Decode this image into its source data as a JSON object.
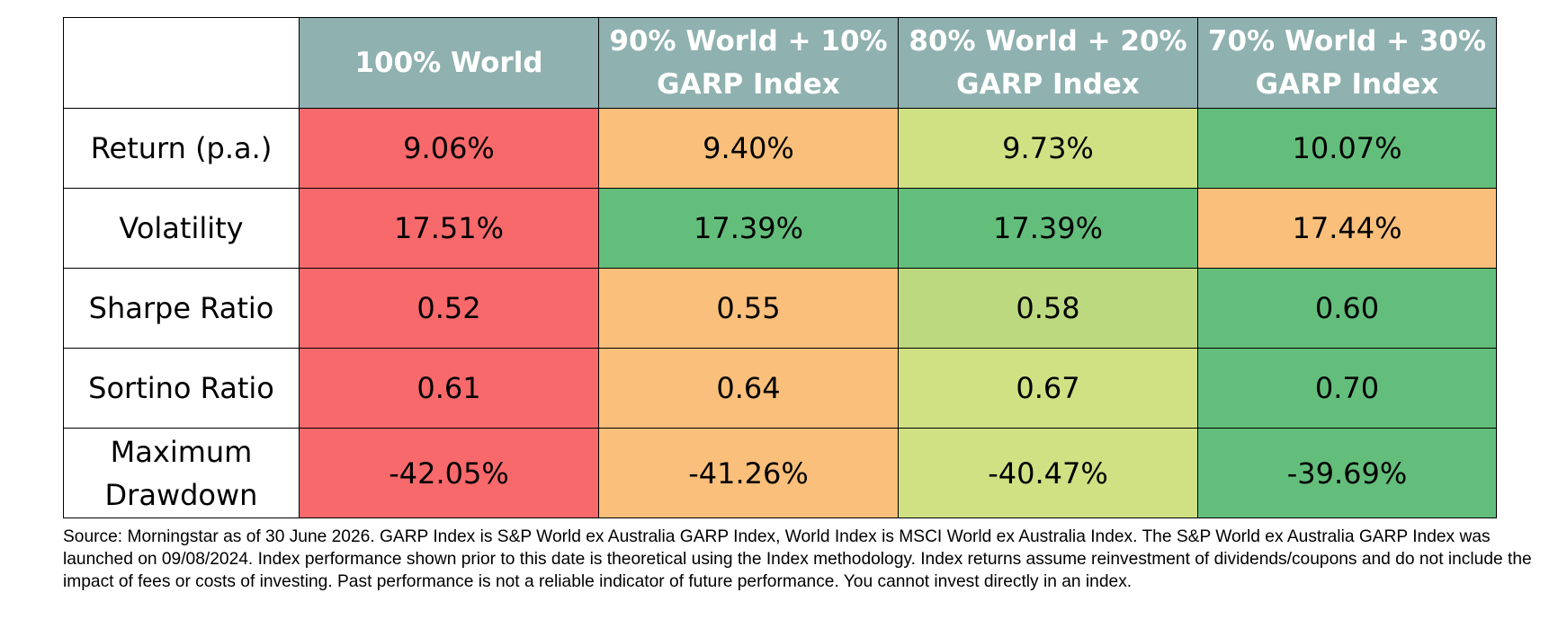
{
  "colors": {
    "header_bg": "#8fb1af",
    "red": "#f8696b",
    "orange": "#fabf7a",
    "light_yellow_green": "#cfe183",
    "light_green": "#bcd97f",
    "green": "#63be7b"
  },
  "table": {
    "columns": [
      "100% World",
      "90% World + 10% GARP Index",
      "80% World + 20% GARP Index",
      "70% World + 30% GARP Index"
    ],
    "rows": [
      {
        "label": "Return (p.a.)",
        "values": [
          "9.06%",
          "9.40%",
          "9.73%",
          "10.07%"
        ],
        "colors": [
          "#f8696b",
          "#fabf7a",
          "#cfe183",
          "#63be7b"
        ]
      },
      {
        "label": "Volatility",
        "values": [
          "17.51%",
          "17.39%",
          "17.39%",
          "17.44%"
        ],
        "colors": [
          "#f8696b",
          "#63be7b",
          "#63be7b",
          "#fabf7a"
        ]
      },
      {
        "label": "Sharpe Ratio",
        "values": [
          "0.52",
          "0.55",
          "0.58",
          "0.60"
        ],
        "colors": [
          "#f8696b",
          "#fabf7a",
          "#bcd97f",
          "#63be7b"
        ]
      },
      {
        "label": "Sortino Ratio",
        "values": [
          "0.61",
          "0.64",
          "0.67",
          "0.70"
        ],
        "colors": [
          "#f8696b",
          "#fabf7a",
          "#cfe183",
          "#63be7b"
        ]
      },
      {
        "label": "Maximum Drawdown",
        "values": [
          "-42.05%",
          "-41.26%",
          "-40.47%",
          "-39.69%"
        ],
        "colors": [
          "#f8696b",
          "#fabf7a",
          "#cfe183",
          "#63be7b"
        ]
      }
    ]
  },
  "source_note": "Source: Morningstar as of 30 June 2026. GARP Index is S&P World ex Australia GARP Index, World Index is MSCI World ex Australia Index. The S&P World ex Australia GARP Index was launched on 09/08/2024. Index performance shown prior to this date is theoretical using the Index methodology. Index returns assume reinvestment of dividends/coupons and do not include the impact of fees or costs of investing. Past performance is not a reliable indicator of future performance. You cannot invest directly in an index."
}
